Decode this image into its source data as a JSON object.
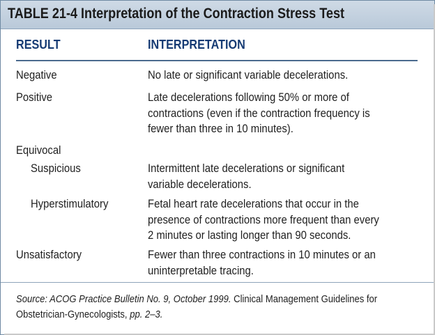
{
  "table": {
    "title": "TABLE 21-4  Interpretation of the Contraction Stress Test",
    "columns": {
      "result": "RESULT",
      "interpretation": "INTERPRETATION"
    },
    "rows": [
      {
        "result": "Negative",
        "interpretation": "No late or significant variable decelerations."
      },
      {
        "result": "Positive",
        "interpretation": "Late decelerations following 50% or more of\ncontractions (even if the contraction frequency is\nfewer than three in 10 minutes)."
      },
      {
        "result": "Equivocal",
        "interpretation": ""
      },
      {
        "result": "Suspicious",
        "interpretation": "Intermittent late decelerations or significant\nvariable decelerations."
      },
      {
        "result": "Hyperstimulatory",
        "interpretation": "Fetal heart rate decelerations that occur in the\npresence of contractions more frequent than every\n2 minutes or lasting longer than 90 seconds."
      },
      {
        "result": "Unsatisfactory",
        "interpretation": "Fewer than three contractions in 10 minutes or an\nuninterpretable tracing."
      }
    ],
    "footnote": {
      "source": "Source: ACOG Practice Bulletin No. 9, October 1999.",
      "book": " Clinical Management Guidelines for Obstetrician-Gynecologists,",
      "pages": " pp. 2–3."
    }
  },
  "colors": {
    "title_bar": "#c4d2e0",
    "header_text": "#163b74",
    "rule": "#4a6a8e"
  }
}
